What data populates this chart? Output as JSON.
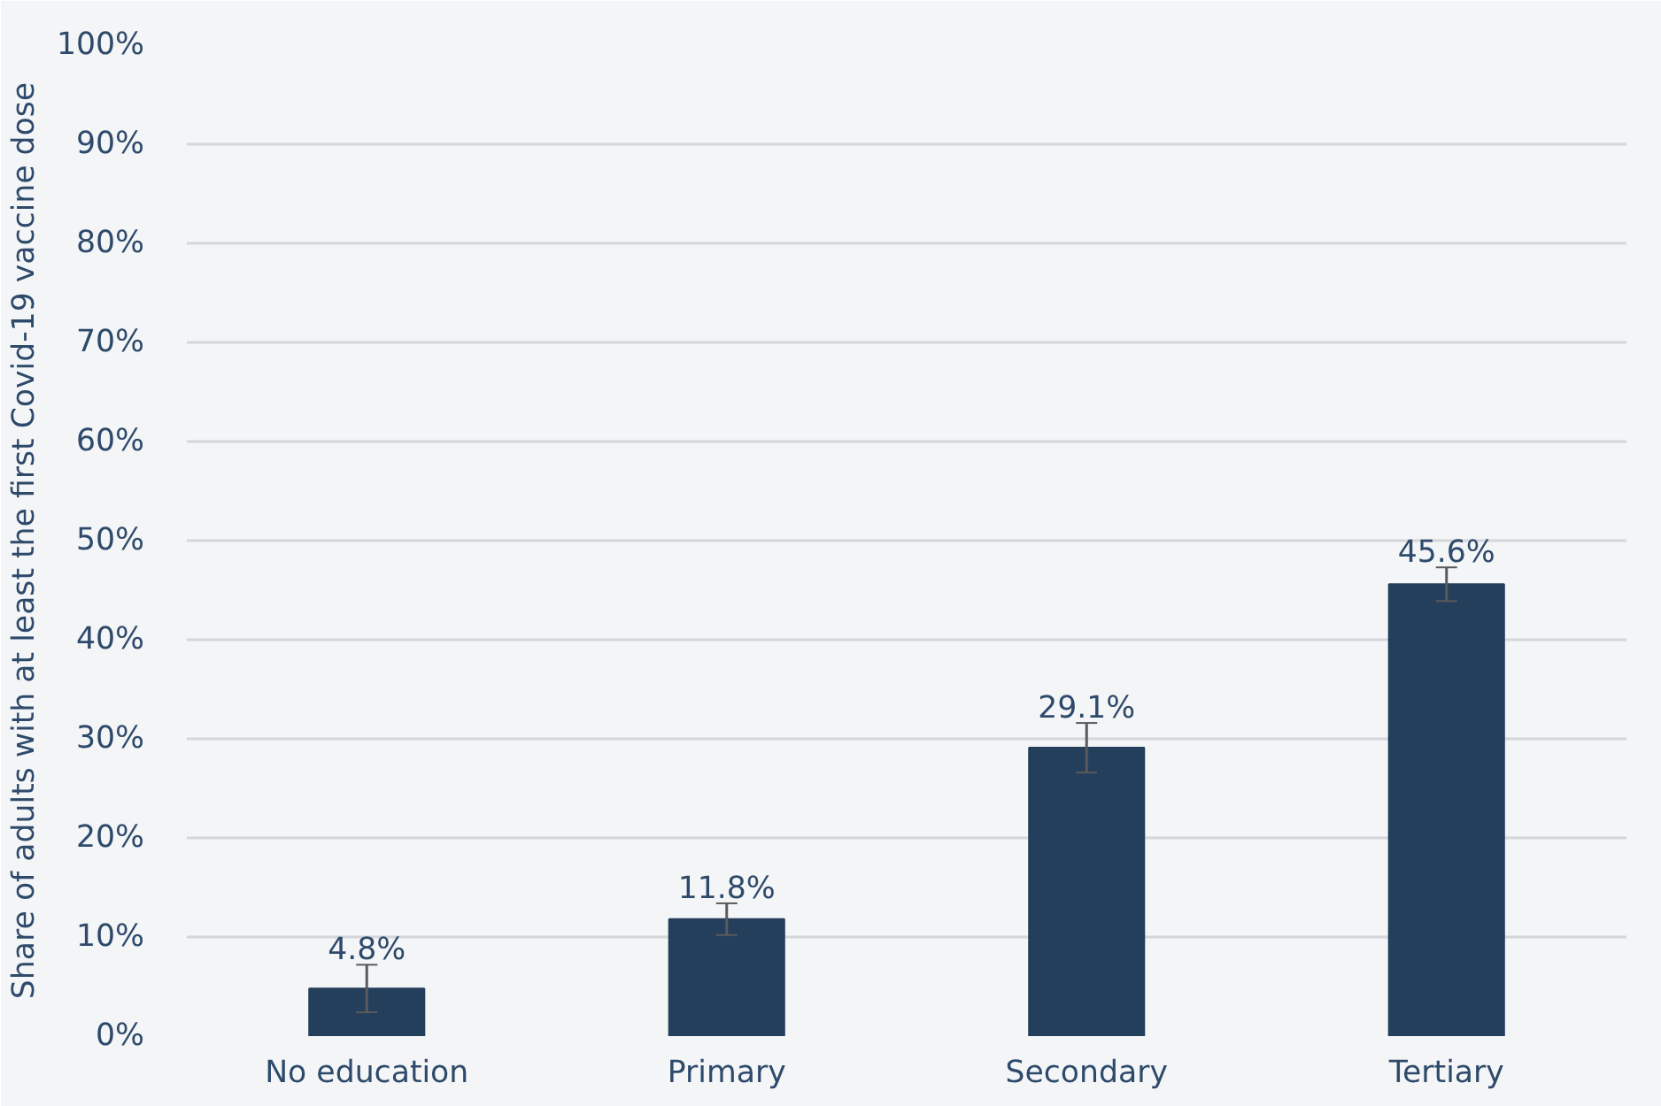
{
  "chart_data": {
    "type": "bar",
    "ylabel": "Share of adults with at least the first Covid-19 vaccine dose",
    "categories": [
      "No education",
      "Primary",
      "Secondary",
      "Tertiary"
    ],
    "values": [
      4.8,
      11.8,
      29.1,
      45.6
    ],
    "errors": [
      2.4,
      1.6,
      2.5,
      1.7
    ],
    "value_labels": [
      "4.8%",
      "11.8%",
      "29.1%",
      "45.6%"
    ],
    "color": "#243f5c",
    "ylim": [
      0,
      100
    ],
    "yticks": [
      {
        "value": 0,
        "label": "0%"
      },
      {
        "value": 10,
        "label": "10%"
      },
      {
        "value": 20,
        "label": "20%"
      },
      {
        "value": 30,
        "label": "30%"
      },
      {
        "value": 40,
        "label": "40%"
      },
      {
        "value": 50,
        "label": "50%"
      },
      {
        "value": 60,
        "label": "60%"
      },
      {
        "value": 70,
        "label": "70%"
      },
      {
        "value": 80,
        "label": "80%"
      },
      {
        "value": 90,
        "label": "90%"
      },
      {
        "value": 100,
        "label": "100%"
      }
    ],
    "grid": "y"
  }
}
